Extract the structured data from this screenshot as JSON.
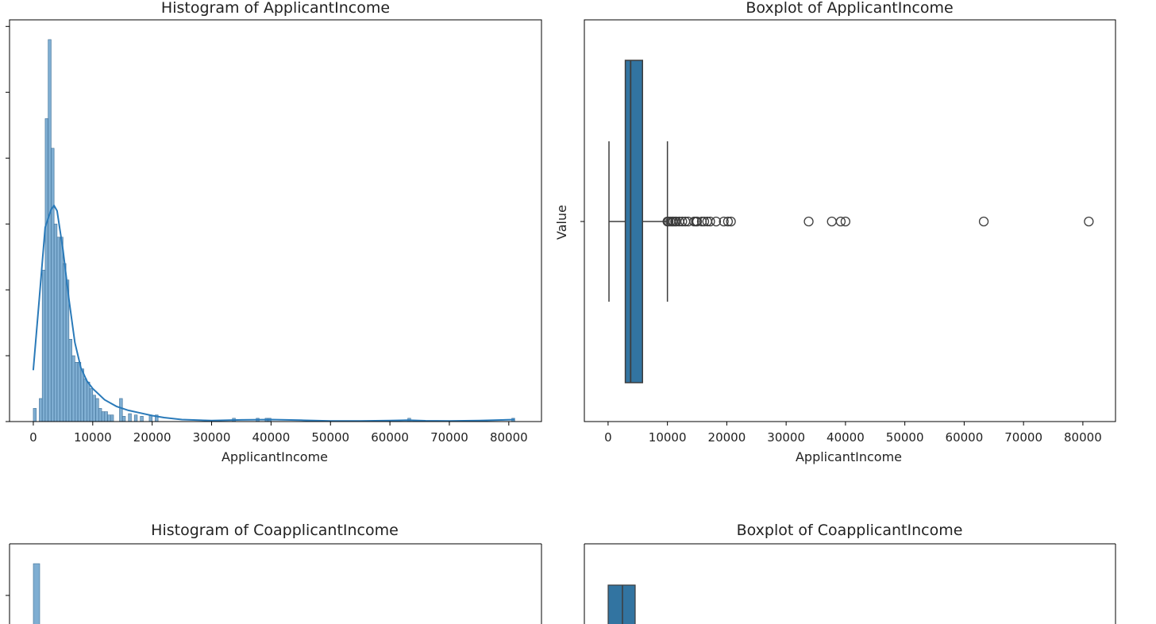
{
  "chart_data": [
    {
      "type": "bar",
      "kind": "histogram",
      "title": "Histogram of ApplicantIncome",
      "xlabel": "ApplicantIncome",
      "ylabel": "",
      "xlim": [
        -4000,
        85500
      ],
      "ylim": [
        0,
        61
      ],
      "xticks": [
        0,
        10000,
        20000,
        30000,
        40000,
        50000,
        60000,
        70000,
        80000
      ],
      "y_tick_values": [
        0,
        10,
        20,
        30,
        40,
        50,
        60
      ],
      "y_tick_labels_visible": false,
      "bin_width": 1000,
      "bins": [
        {
          "x": 0,
          "count": 2
        },
        {
          "x": 1000,
          "count": 3.5
        },
        {
          "x": 1500,
          "count": 23
        },
        {
          "x": 2000,
          "count": 46
        },
        {
          "x": 2500,
          "count": 58
        },
        {
          "x": 3000,
          "count": 41.5
        },
        {
          "x": 3500,
          "count": 30
        },
        {
          "x": 4000,
          "count": 28
        },
        {
          "x": 4500,
          "count": 28
        },
        {
          "x": 5000,
          "count": 24
        },
        {
          "x": 5500,
          "count": 21.5
        },
        {
          "x": 6000,
          "count": 12.5
        },
        {
          "x": 6500,
          "count": 10
        },
        {
          "x": 7000,
          "count": 9
        },
        {
          "x": 7500,
          "count": 9
        },
        {
          "x": 8000,
          "count": 8
        },
        {
          "x": 8500,
          "count": 6.5
        },
        {
          "x": 9000,
          "count": 6
        },
        {
          "x": 9500,
          "count": 5
        },
        {
          "x": 10000,
          "count": 4
        },
        {
          "x": 10500,
          "count": 3.5
        },
        {
          "x": 11000,
          "count": 2
        },
        {
          "x": 11500,
          "count": 1.5
        },
        {
          "x": 12000,
          "count": 1.5
        },
        {
          "x": 12500,
          "count": 1
        },
        {
          "x": 13000,
          "count": 1
        },
        {
          "x": 14500,
          "count": 3.5
        },
        {
          "x": 15000,
          "count": 0.8
        },
        {
          "x": 16000,
          "count": 1.2
        },
        {
          "x": 17000,
          "count": 1
        },
        {
          "x": 18000,
          "count": 0.8
        },
        {
          "x": 19500,
          "count": 1
        },
        {
          "x": 20500,
          "count": 1
        },
        {
          "x": 33500,
          "count": 0.5
        },
        {
          "x": 37500,
          "count": 0.5
        },
        {
          "x": 39000,
          "count": 0.5
        },
        {
          "x": 39500,
          "count": 0.5
        },
        {
          "x": 63000,
          "count": 0.5
        },
        {
          "x": 80500,
          "count": 0.5
        }
      ],
      "kde": {
        "x": [
          0,
          1000,
          2000,
          3000,
          3500,
          4000,
          5000,
          6000,
          7000,
          8000,
          9000,
          10000,
          12000,
          14000,
          16000,
          18000,
          20000,
          22000,
          25000,
          30000,
          35000,
          40000,
          45000,
          50000,
          55000,
          60000,
          63000,
          66000,
          70000,
          75000,
          81000
        ],
        "y": [
          7.8,
          18.5,
          29.5,
          32.2,
          32.8,
          32.0,
          26.0,
          18.5,
          12.0,
          8.2,
          6.2,
          5.0,
          3.3,
          2.3,
          1.7,
          1.3,
          0.9,
          0.6,
          0.3,
          0.15,
          0.25,
          0.3,
          0.2,
          0.1,
          0.1,
          0.15,
          0.2,
          0.12,
          0.1,
          0.15,
          0.3
        ]
      },
      "bar_color": "#7faed2",
      "line_color": "#2a7ab9"
    },
    {
      "type": "boxplot",
      "title": "Boxplot of ApplicantIncome",
      "xlabel": "ApplicantIncome",
      "ylabel": "Value",
      "xlim": [
        -4000,
        85500
      ],
      "xticks": [
        0,
        10000,
        20000,
        30000,
        40000,
        50000,
        60000,
        70000,
        80000
      ],
      "whisker_low": 150,
      "q1": 2900,
      "median": 3800,
      "q3": 5800,
      "whisker_high": 10000,
      "outliers": [
        10000,
        10200,
        10500,
        10800,
        11000,
        11300,
        11500,
        12000,
        12500,
        13000,
        13500,
        14500,
        14800,
        15000,
        15800,
        16200,
        16700,
        17200,
        18200,
        19500,
        20200,
        20700,
        33800,
        37700,
        39200,
        40000,
        63300,
        81000
      ],
      "box_color": "#3274a1"
    },
    {
      "type": "bar",
      "kind": "histogram",
      "title": "Histogram of CoapplicantIncome",
      "xlabel": "",
      "ylabel": "",
      "visible_portion": "top only (cut off by image edge)",
      "bins_visible": [
        {
          "bin_index": 0,
          "note": "tallest bar at far left"
        }
      ],
      "bar_color": "#7faed2"
    },
    {
      "type": "boxplot",
      "title": "Boxplot of CoapplicantIncome",
      "xlabel": "",
      "ylabel": "",
      "visible_portion": "top only (cut off by image edge)",
      "box_color": "#3274a1"
    }
  ]
}
